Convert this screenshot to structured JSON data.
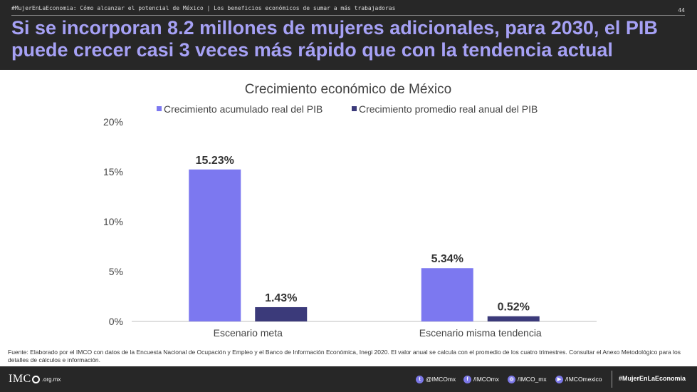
{
  "header": {
    "breadcrumb": "#MujerEnLaEconomia: Cómo alcanzar el potencial de México | Los beneficios económicos de sumar a más trabajadoras",
    "page_number": "44",
    "title": "Si se incorporan 8.2 millones de mujeres adicionales, para 2030, el PIB puede crecer casi 3 veces más rápido que con la tendencia actual"
  },
  "colors": {
    "header_bg": "#272727",
    "title_text": "#a6a1f5",
    "series_light": "#7c78f0",
    "series_dark": "#3b3a7a"
  },
  "chart_data": {
    "type": "bar",
    "title": "Crecimiento económico de México",
    "categories": [
      "Escenario meta",
      "Escenario misma tendencia"
    ],
    "series": [
      {
        "name": "Crecimiento acumulado real del PIB",
        "color": "#7c78f0",
        "values": [
          15.23,
          5.34
        ],
        "labels": [
          "15.23%",
          "5.34%"
        ]
      },
      {
        "name": "Crecimiento promedio real anual del PIB",
        "color": "#3b3a7a",
        "values": [
          1.43,
          0.52
        ],
        "labels": [
          "1.43%",
          "0.52%"
        ]
      }
    ],
    "ylim": [
      0,
      20
    ],
    "yticks": [
      0,
      5,
      10,
      15,
      20
    ],
    "ytick_labels": [
      "0%",
      "5%",
      "10%",
      "15%",
      "20%"
    ],
    "legend_position": "top",
    "grid": false
  },
  "source": "Fuente: Elaborado por el IMCO con datos de la Encuesta Nacional de Ocupación y Empleo y el Banco de Información Económica, Inegi 2020. El valor anual se calcula con el promedio de los cuatro trimestres. Consultar el Anexo Metodológico para los detalles de cálculos e información.",
  "footer": {
    "logo_text": "IMC",
    "logo_suffix": ".org.mx",
    "social": [
      {
        "icon": "twitter-icon",
        "glyph": "t",
        "label": "@IMCOmx"
      },
      {
        "icon": "facebook-icon",
        "glyph": "f",
        "label": "/IMCOmx"
      },
      {
        "icon": "instagram-icon",
        "glyph": "◎",
        "label": "/IMCO_mx"
      },
      {
        "icon": "youtube-icon",
        "glyph": "▶",
        "label": "/IMCOmexico"
      }
    ],
    "hashtag": "#MujerEnLaEconomia"
  }
}
